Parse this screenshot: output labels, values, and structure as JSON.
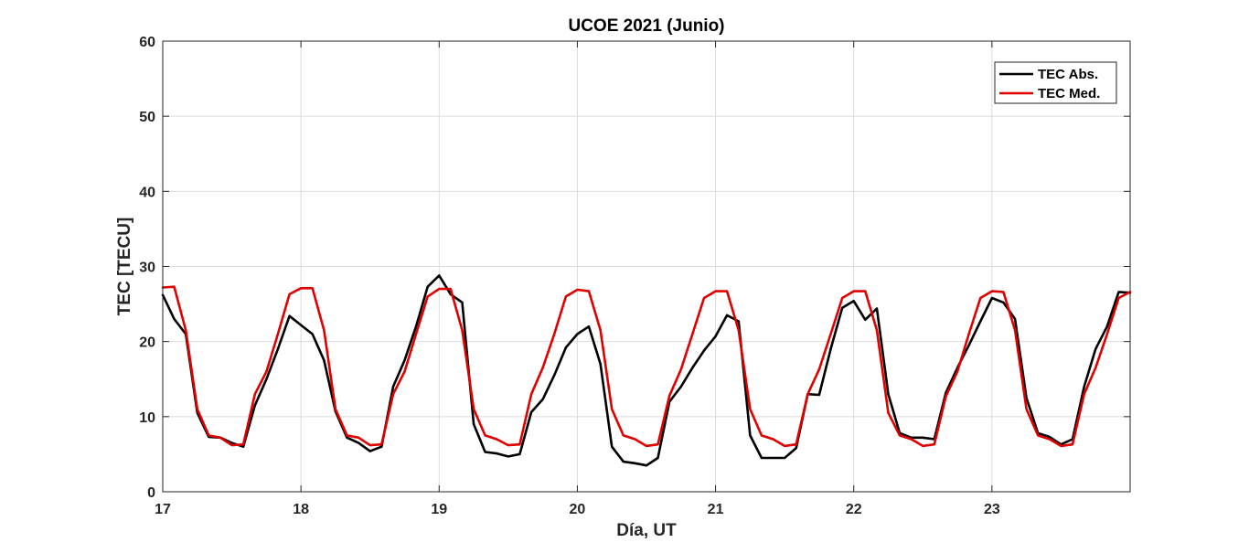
{
  "chart_data": {
    "type": "line",
    "title": "UCOE 2021 (Junio)",
    "xlabel": "Día, UT",
    "ylabel": "TEC [TECU]",
    "xlim": [
      17,
      24
    ],
    "ylim": [
      0,
      60
    ],
    "xticks": [
      17,
      18,
      19,
      20,
      21,
      22,
      23
    ],
    "yticks": [
      0,
      10,
      20,
      30,
      40,
      50,
      60
    ],
    "grid": true,
    "legend_position": "top-right",
    "series": [
      {
        "name": "TEC Abs.",
        "color": "#000000",
        "x": [
          17.0,
          17.083,
          17.167,
          17.25,
          17.333,
          17.417,
          17.5,
          17.583,
          17.667,
          17.75,
          17.833,
          17.917,
          18.0,
          18.083,
          18.167,
          18.25,
          18.333,
          18.417,
          18.5,
          18.583,
          18.667,
          18.75,
          18.833,
          18.917,
          19.0,
          19.083,
          19.167,
          19.25,
          19.333,
          19.417,
          19.5,
          19.583,
          19.667,
          19.75,
          19.833,
          19.917,
          20.0,
          20.083,
          20.167,
          20.25,
          20.333,
          20.417,
          20.5,
          20.583,
          20.667,
          20.75,
          20.833,
          20.917,
          21.0,
          21.083,
          21.167,
          21.25,
          21.333,
          21.417,
          21.5,
          21.583,
          21.667,
          21.75,
          21.833,
          21.917,
          22.0,
          22.083,
          22.167,
          22.25,
          22.333,
          22.417,
          22.5,
          22.583,
          22.667,
          22.75,
          22.833,
          22.917,
          23.0,
          23.083,
          23.167,
          23.25,
          23.333,
          23.417,
          23.5,
          23.583,
          23.667,
          23.75,
          23.833,
          23.917,
          24.0
        ],
        "y": [
          26.2,
          23.0,
          21.0,
          10.5,
          7.3,
          7.2,
          6.5,
          6.0,
          11.5,
          15.0,
          19.0,
          23.4,
          22.2,
          21.0,
          17.5,
          10.7,
          7.2,
          6.5,
          5.4,
          6.0,
          14.0,
          17.5,
          22.0,
          27.3,
          28.8,
          26.3,
          25.2,
          9.0,
          5.3,
          5.1,
          4.7,
          5.0,
          10.6,
          12.3,
          15.5,
          19.2,
          21.0,
          22.0,
          17.0,
          6.0,
          4.0,
          3.8,
          3.5,
          4.5,
          12.0,
          14.0,
          16.5,
          18.8,
          20.7,
          23.5,
          22.7,
          7.5,
          4.5,
          4.5,
          4.5,
          5.8,
          13.0,
          12.9,
          19.0,
          24.5,
          25.4,
          22.9,
          24.4,
          13.0,
          7.8,
          7.2,
          7.2,
          7.0,
          13.2,
          16.5,
          19.5,
          22.7,
          25.8,
          25.2,
          23.0,
          12.5,
          7.8,
          7.3,
          6.3,
          7.0,
          14.0,
          19.0,
          22.0,
          26.6,
          26.5
        ]
      },
      {
        "name": "TEC Med.",
        "color": "#e00000",
        "x": [
          17.0,
          17.083,
          17.167,
          17.25,
          17.333,
          17.417,
          17.5,
          17.583,
          17.667,
          17.75,
          17.833,
          17.917,
          18.0,
          18.083,
          18.167,
          18.25,
          18.333,
          18.417,
          18.5,
          18.583,
          18.667,
          18.75,
          18.833,
          18.917,
          19.0,
          19.083,
          19.167,
          19.25,
          19.333,
          19.417,
          19.5,
          19.583,
          19.667,
          19.75,
          19.833,
          19.917,
          20.0,
          20.083,
          20.167,
          20.25,
          20.333,
          20.417,
          20.5,
          20.583,
          20.667,
          20.75,
          20.833,
          20.917,
          21.0,
          21.083,
          21.167,
          21.25,
          21.333,
          21.417,
          21.5,
          21.583,
          21.667,
          21.75,
          21.833,
          21.917,
          22.0,
          22.083,
          22.167,
          22.25,
          22.333,
          22.417,
          22.5,
          22.583,
          22.667,
          22.75,
          22.833,
          22.917,
          23.0,
          23.083,
          23.167,
          23.25,
          23.333,
          23.417,
          23.5,
          23.583,
          23.667,
          23.75,
          23.833,
          23.917,
          24.0
        ],
        "y": [
          27.2,
          27.3,
          21.5,
          11.0,
          7.5,
          7.2,
          6.2,
          6.3,
          13.0,
          16.0,
          21.0,
          26.3,
          27.1,
          27.1,
          21.5,
          11.0,
          7.5,
          7.2,
          6.2,
          6.3,
          13.0,
          16.0,
          21.0,
          26.0,
          27.0,
          27.0,
          21.5,
          11.0,
          7.5,
          7.0,
          6.2,
          6.3,
          13.0,
          16.5,
          21.0,
          26.0,
          26.9,
          26.7,
          21.5,
          11.0,
          7.5,
          7.0,
          6.1,
          6.3,
          12.8,
          16.3,
          21.0,
          25.8,
          26.7,
          26.7,
          21.5,
          11.0,
          7.5,
          7.0,
          6.1,
          6.3,
          13.0,
          16.3,
          21.0,
          25.8,
          26.7,
          26.7,
          21.5,
          10.5,
          7.5,
          7.0,
          6.1,
          6.3,
          12.7,
          16.0,
          21.0,
          25.8,
          26.7,
          26.6,
          21.5,
          11.0,
          7.5,
          7.0,
          6.1,
          6.3,
          13.0,
          16.5,
          21.0,
          25.8,
          26.6
        ]
      }
    ]
  }
}
